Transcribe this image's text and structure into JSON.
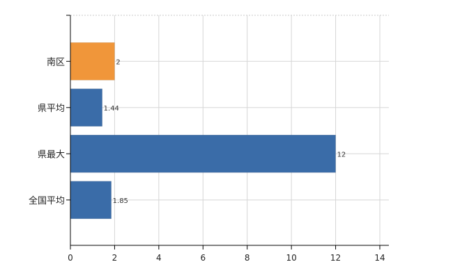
{
  "chart_data": {
    "type": "bar",
    "orientation": "horizontal",
    "categories": [
      "南区",
      "県平均",
      "県最大",
      "全国平均"
    ],
    "values": [
      2,
      1.44,
      12,
      1.85
    ],
    "data_labels": [
      "2",
      "1.44",
      "12",
      "1.85"
    ],
    "colors": [
      "#f0963a",
      "#3a6ca8",
      "#3a6ca8",
      "#3a6ca8"
    ],
    "xlim": [
      0,
      14
    ],
    "x_ticks": [
      0,
      2,
      4,
      6,
      8,
      10,
      12,
      14
    ],
    "grid": true,
    "title": "",
    "xlabel": "",
    "ylabel": ""
  }
}
